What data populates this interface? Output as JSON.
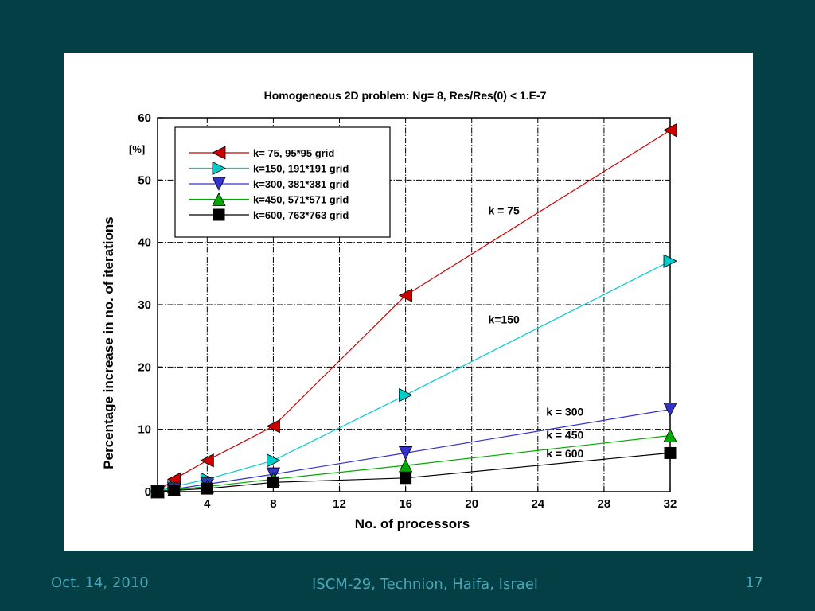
{
  "footer": {
    "date": "Oct. 14, 2010",
    "center": "ISCM-29, Technion, Haifa, Israel",
    "page": "17"
  },
  "colors": {
    "background": "#033f44",
    "panel": "#ffffff",
    "footer_text": "#4aa6b8"
  },
  "chart_data": {
    "type": "line",
    "title": "Homogeneous 2D problem:  Ng= 8,  Res/Res(0) < 1.E-7",
    "xlabel": "No. of  processors",
    "ylabel": "Percentage increase in  no. of  iterations",
    "yunit": "[%]",
    "xlim": [
      1,
      32
    ],
    "ylim": [
      0,
      60
    ],
    "xticks": [
      4,
      8,
      12,
      16,
      20,
      24,
      28,
      32
    ],
    "yticks": [
      0,
      10,
      20,
      30,
      40,
      50,
      60
    ],
    "grid": true,
    "legend_position": "top-left",
    "series": [
      {
        "name": "k=  75,    95*95  grid",
        "color": "#cc0000",
        "marker": "triangle-left",
        "x": [
          1,
          2,
          4,
          8,
          16,
          32
        ],
        "y": [
          0,
          2,
          5,
          10.5,
          31.5,
          58
        ],
        "annotation": "k = 75",
        "annotation_at": [
          21,
          44.5
        ]
      },
      {
        "name": "k=150,  191*191 grid",
        "color": "#00cccc",
        "marker": "triangle-right",
        "x": [
          1,
          2,
          4,
          8,
          16,
          32
        ],
        "y": [
          0,
          0.8,
          2,
          5,
          15.5,
          37
        ],
        "annotation": "k=150",
        "annotation_at": [
          21,
          27
        ]
      },
      {
        "name": "k=300,  381*381 grid",
        "color": "#3333cc",
        "marker": "triangle-down",
        "x": [
          1,
          2,
          4,
          8,
          16,
          32
        ],
        "y": [
          0,
          0.4,
          1.2,
          2.8,
          6.2,
          13.2
        ],
        "annotation": "k = 300",
        "annotation_at": [
          24.5,
          12.2
        ]
      },
      {
        "name": "k=450,  571*571 grid",
        "color": "#00aa00",
        "marker": "triangle-up",
        "x": [
          1,
          2,
          4,
          8,
          16,
          32
        ],
        "y": [
          0,
          0.3,
          0.8,
          2,
          4.2,
          9
        ],
        "annotation": "k = 450",
        "annotation_at": [
          24.5,
          8.5
        ]
      },
      {
        "name": "k=600,  763*763 grid",
        "color": "#000000",
        "marker": "square",
        "x": [
          1,
          2,
          4,
          8,
          16,
          32
        ],
        "y": [
          0,
          0.2,
          0.5,
          1.5,
          2.2,
          6.2
        ],
        "annotation": "k = 600",
        "annotation_at": [
          24.5,
          5.5
        ]
      }
    ]
  }
}
